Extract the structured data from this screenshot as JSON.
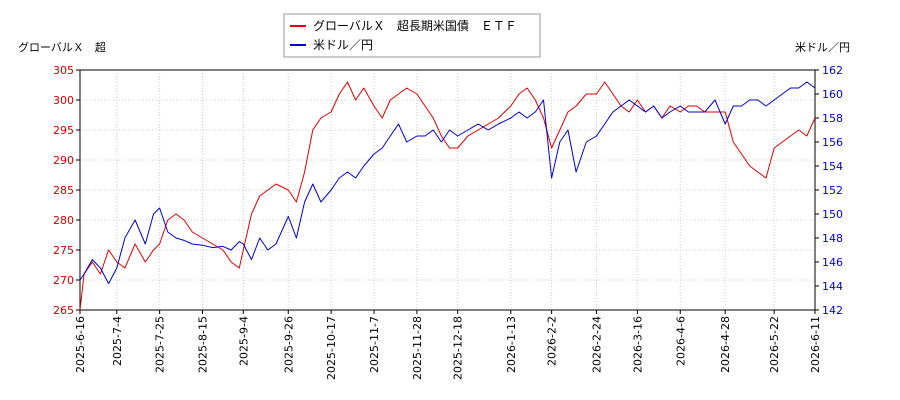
{
  "chart_data": {
    "type": "line",
    "title": "",
    "left_axis_label": "グローバルＸ　超",
    "right_axis_label": "米ドル／円",
    "legend_position": "top-center",
    "grid": true,
    "x_ticks": [
      "2025-6-16",
      "2025-7-4",
      "2025-7-25",
      "2025-8-15",
      "2025-9-4",
      "2025-9-26",
      "2025-10-17",
      "2025-11-7",
      "2025-11-28",
      "2025-12-18",
      "2026-1-13",
      "2026-2-2",
      "2026-2-24",
      "2026-3-16",
      "2026-4-6",
      "2026-4-28",
      "2026-5-22",
      "2026-6-11"
    ],
    "y_left": {
      "min": 265,
      "max": 305,
      "ticks": [
        "265",
        "270",
        "275",
        "280",
        "285",
        "290",
        "295",
        "300",
        "305"
      ]
    },
    "y_right": {
      "min": 142,
      "max": 162,
      "ticks": [
        "142",
        "144",
        "146",
        "148",
        "150",
        "152",
        "154",
        "156",
        "158",
        "160",
        "162"
      ]
    },
    "series": [
      {
        "name": "グローバルＸ　超長期米国債　ＥＴＦ",
        "axis": "left",
        "color": "#dd0000",
        "x": [
          "2025-6-16",
          "2025-6-18",
          "2025-6-22",
          "2025-6-26",
          "2025-6-30",
          "2025-7-4",
          "2025-7-8",
          "2025-7-13",
          "2025-7-18",
          "2025-7-22",
          "2025-7-25",
          "2025-7-29",
          "2025-8-2",
          "2025-8-6",
          "2025-8-10",
          "2025-8-15",
          "2025-8-20",
          "2025-8-25",
          "2025-8-29",
          "2025-9-2",
          "2025-9-4",
          "2025-9-8",
          "2025-9-12",
          "2025-9-16",
          "2025-9-20",
          "2025-9-26",
          "2025-9-30",
          "2025-10-4",
          "2025-10-8",
          "2025-10-12",
          "2025-10-17",
          "2025-10-21",
          "2025-10-25",
          "2025-10-29",
          "2025-11-2",
          "2025-11-7",
          "2025-11-11",
          "2025-11-15",
          "2025-11-19",
          "2025-11-23",
          "2025-11-28",
          "2025-12-2",
          "2025-12-6",
          "2025-12-10",
          "2025-12-14",
          "2025-12-18",
          "2025-12-23",
          "2025-12-28",
          "2026-1-2",
          "2026-1-7",
          "2026-1-13",
          "2026-1-17",
          "2026-1-21",
          "2026-1-25",
          "2026-1-29",
          "2026-2-2",
          "2026-2-6",
          "2026-2-10",
          "2026-2-14",
          "2026-2-19",
          "2026-2-24",
          "2026-2-28",
          "2026-3-4",
          "2026-3-8",
          "2026-3-12",
          "2026-3-16",
          "2026-3-20",
          "2026-3-24",
          "2026-3-28",
          "2026-4-1",
          "2026-4-6",
          "2026-4-10",
          "2026-4-14",
          "2026-4-18",
          "2026-4-23",
          "2026-4-28",
          "2026-5-2",
          "2026-5-6",
          "2026-5-10",
          "2026-5-14",
          "2026-5-18",
          "2026-5-22",
          "2026-5-26",
          "2026-5-30",
          "2026-6-3",
          "2026-6-7",
          "2026-6-11"
        ],
        "values": [
          265,
          271,
          273,
          271,
          275,
          273,
          272,
          276,
          273,
          275,
          276,
          280,
          281,
          280,
          278,
          277,
          276,
          275,
          273,
          272,
          275,
          281,
          284,
          285,
          286,
          285,
          283,
          288,
          295,
          297,
          298,
          301,
          303,
          300,
          302,
          299,
          297,
          300,
          301,
          302,
          301,
          299,
          297,
          294,
          292,
          292,
          294,
          295,
          296,
          297,
          299,
          301,
          302,
          300,
          297,
          292,
          295,
          298,
          299,
          301,
          301,
          303,
          301,
          299,
          298,
          300,
          298,
          299,
          297,
          299,
          298,
          299,
          299,
          298,
          298,
          298,
          293,
          291,
          289,
          288,
          287,
          292,
          293,
          294,
          295,
          294,
          297
        ]
      },
      {
        "name": "米ドル／円",
        "axis": "right",
        "color": "#0000cc",
        "x": [
          "2025-6-16",
          "2025-6-18",
          "2025-6-22",
          "2025-6-26",
          "2025-6-30",
          "2025-7-4",
          "2025-7-8",
          "2025-7-13",
          "2025-7-18",
          "2025-7-22",
          "2025-7-25",
          "2025-7-29",
          "2025-8-2",
          "2025-8-6",
          "2025-8-10",
          "2025-8-15",
          "2025-8-20",
          "2025-8-25",
          "2025-8-29",
          "2025-9-2",
          "2025-9-4",
          "2025-9-8",
          "2025-9-12",
          "2025-9-16",
          "2025-9-20",
          "2025-9-26",
          "2025-9-30",
          "2025-10-4",
          "2025-10-8",
          "2025-10-12",
          "2025-10-17",
          "2025-10-21",
          "2025-10-25",
          "2025-10-29",
          "2025-11-2",
          "2025-11-7",
          "2025-11-11",
          "2025-11-15",
          "2025-11-19",
          "2025-11-23",
          "2025-11-28",
          "2025-12-2",
          "2025-12-6",
          "2025-12-10",
          "2025-12-14",
          "2025-12-18",
          "2025-12-23",
          "2025-12-28",
          "2026-1-2",
          "2026-1-7",
          "2026-1-13",
          "2026-1-17",
          "2026-1-21",
          "2026-1-25",
          "2026-1-29",
          "2026-2-2",
          "2026-2-6",
          "2026-2-10",
          "2026-2-14",
          "2026-2-19",
          "2026-2-24",
          "2026-2-28",
          "2026-3-4",
          "2026-3-8",
          "2026-3-12",
          "2026-3-16",
          "2026-3-20",
          "2026-3-24",
          "2026-3-28",
          "2026-4-1",
          "2026-4-6",
          "2026-4-10",
          "2026-4-14",
          "2026-4-18",
          "2026-4-23",
          "2026-4-28",
          "2026-5-2",
          "2026-5-6",
          "2026-5-10",
          "2026-5-14",
          "2026-5-18",
          "2026-5-22",
          "2026-5-26",
          "2026-5-30",
          "2026-6-3",
          "2026-6-7",
          "2026-6-11"
        ],
        "values": [
          144.5,
          145.0,
          146.2,
          145.5,
          144.2,
          145.5,
          148.0,
          149.5,
          147.5,
          150.0,
          150.5,
          148.5,
          148.0,
          147.8,
          147.5,
          147.4,
          147.2,
          147.3,
          147.0,
          147.7,
          147.5,
          146.2,
          148.0,
          147.0,
          147.5,
          149.8,
          148.0,
          151.0,
          152.5,
          151.0,
          152.0,
          153.0,
          153.5,
          153.0,
          154.0,
          155.0,
          155.5,
          156.5,
          157.5,
          156.0,
          156.5,
          156.5,
          157.0,
          156.0,
          157.0,
          156.5,
          157.0,
          157.5,
          157.0,
          157.5,
          158.0,
          158.5,
          158.0,
          158.5,
          159.5,
          153.0,
          156.0,
          157.0,
          153.5,
          156.0,
          156.5,
          157.5,
          158.5,
          159.0,
          159.5,
          159.0,
          158.5,
          159.0,
          158.0,
          158.5,
          159.0,
          158.5,
          158.5,
          158.5,
          159.5,
          157.5,
          159.0,
          159.0,
          159.5,
          159.5,
          159.0,
          159.5,
          160.0,
          160.5,
          160.5,
          161.0,
          160.5
        ]
      }
    ]
  }
}
